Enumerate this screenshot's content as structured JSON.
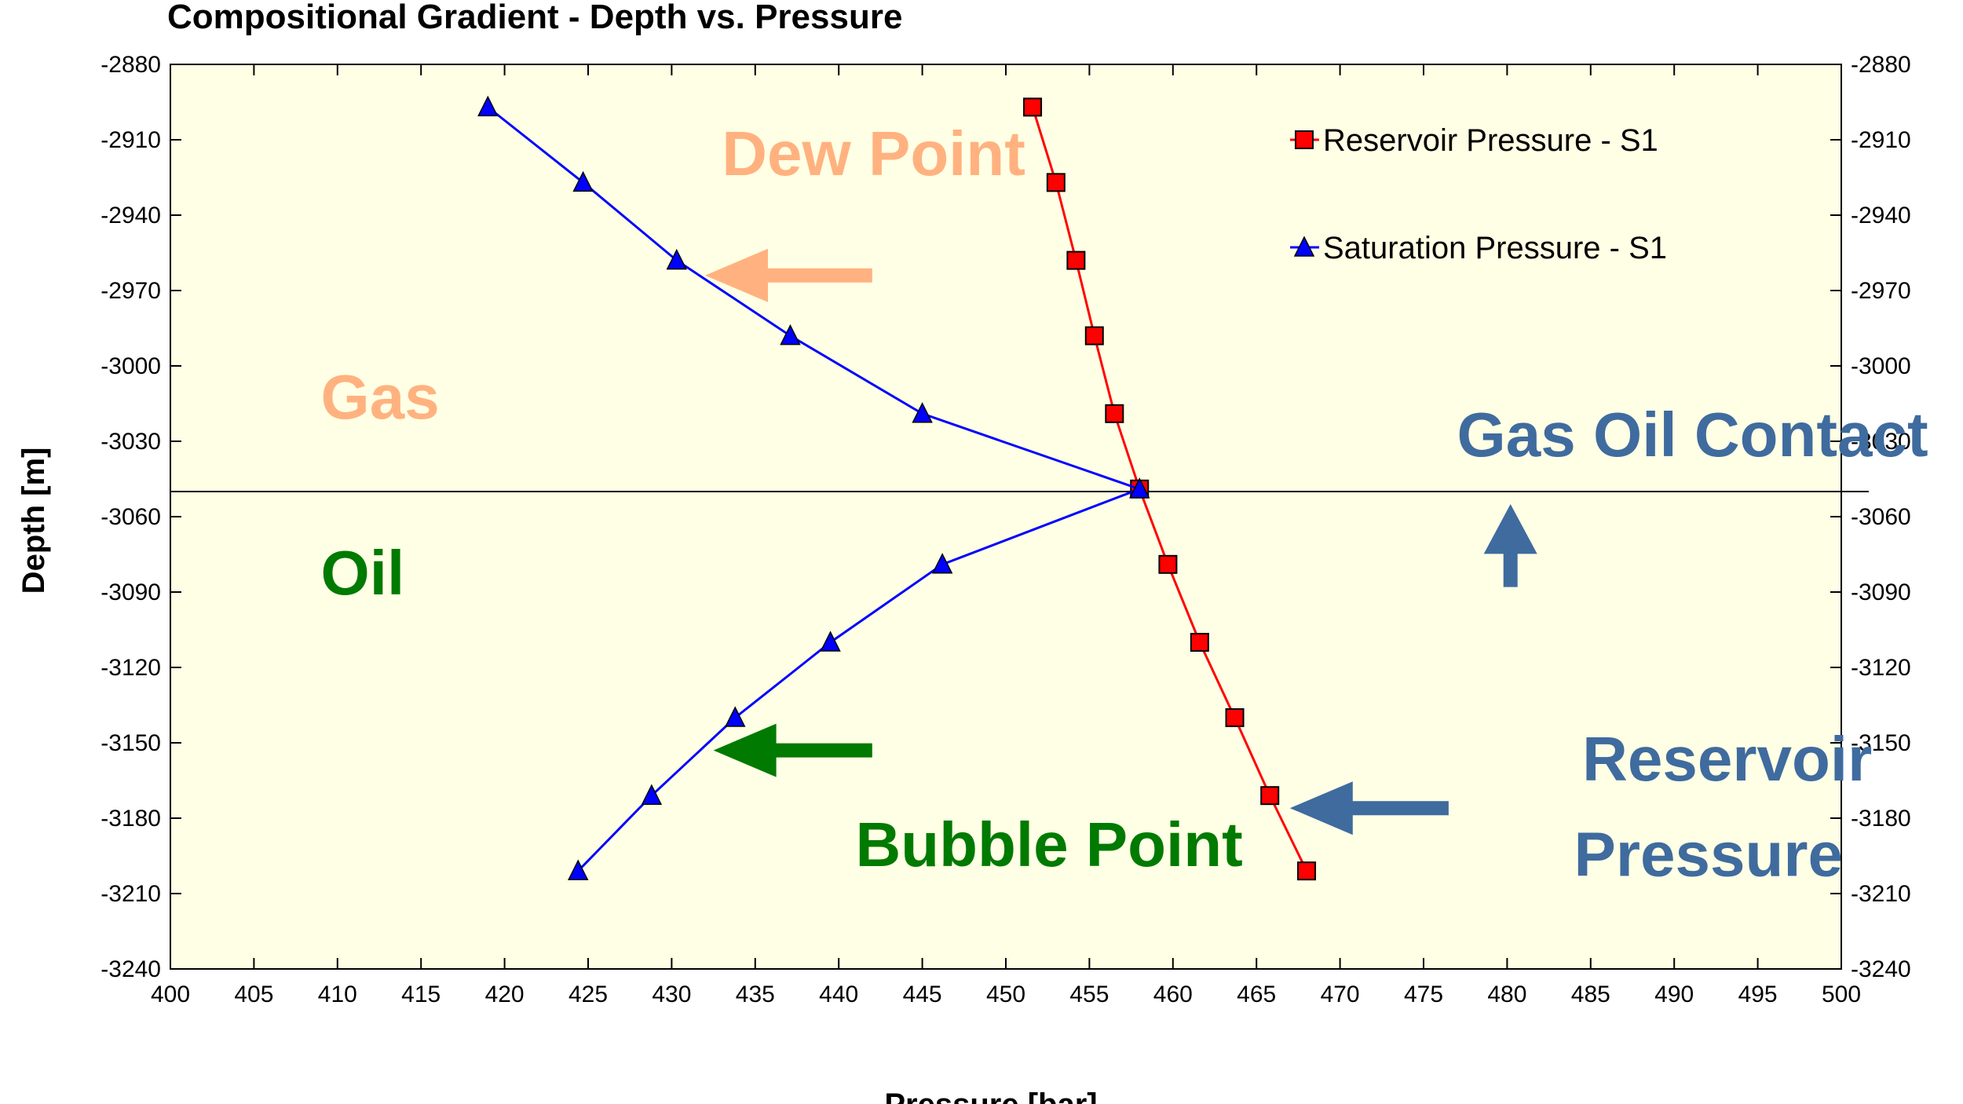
{
  "chart_data": {
    "type": "line",
    "title": "Compositional Gradient - Depth vs. Pressure",
    "xlabel": "Pressure [bar]",
    "ylabel": "Depth [m]",
    "xlim": [
      400,
      500
    ],
    "ylim": [
      -3240,
      -2880
    ],
    "x_ticks": [
      400,
      405,
      410,
      415,
      420,
      425,
      430,
      435,
      440,
      445,
      450,
      455,
      460,
      465,
      470,
      475,
      480,
      485,
      490,
      495,
      500
    ],
    "y_ticks": [
      -2880,
      -2910,
      -2940,
      -2970,
      -3000,
      -3030,
      -3060,
      -3090,
      -3120,
      -3150,
      -3180,
      -3210,
      -3240
    ],
    "y_axis_sides": "left and right",
    "grid": false,
    "plot_background": "#FFFFE5",
    "legend_position": "top-right",
    "series": [
      {
        "name": "Reservoir Pressure - S1",
        "color": "#FF0000",
        "marker": "square",
        "points": [
          {
            "x": 451.6,
            "y": -2897
          },
          {
            "x": 453.0,
            "y": -2927
          },
          {
            "x": 454.2,
            "y": -2958
          },
          {
            "x": 455.3,
            "y": -2988
          },
          {
            "x": 456.5,
            "y": -3019
          },
          {
            "x": 458.0,
            "y": -3049
          },
          {
            "x": 459.7,
            "y": -3079
          },
          {
            "x": 461.6,
            "y": -3110
          },
          {
            "x": 463.7,
            "y": -3140
          },
          {
            "x": 465.8,
            "y": -3171
          },
          {
            "x": 468.0,
            "y": -3201
          }
        ]
      },
      {
        "name": "Saturation Pressure - S1",
        "color": "#0000FF",
        "marker": "triangle",
        "points": [
          {
            "x": 419.0,
            "y": -2897
          },
          {
            "x": 424.7,
            "y": -2927
          },
          {
            "x": 430.3,
            "y": -2958
          },
          {
            "x": 437.1,
            "y": -2988
          },
          {
            "x": 445.0,
            "y": -3019
          },
          {
            "x": 458.0,
            "y": -3049
          },
          {
            "x": 446.2,
            "y": -3079
          },
          {
            "x": 439.5,
            "y": -3110
          },
          {
            "x": 433.8,
            "y": -3140
          },
          {
            "x": 428.8,
            "y": -3171
          },
          {
            "x": 424.4,
            "y": -3201
          }
        ]
      }
    ],
    "reference_line": {
      "orientation": "horizontal",
      "y": -3050,
      "color": "#000000"
    },
    "annotations": [
      {
        "id": "dew-point",
        "text": "Dew Point",
        "color": "#FFB27F",
        "text_x": 433.0,
        "text_y": -2924,
        "arrow_from": {
          "x": 442.0,
          "y": -2964
        },
        "arrow_to": {
          "x": 432.0,
          "y": -2964
        }
      },
      {
        "id": "gas",
        "text": "Gas",
        "color": "#FFB27F",
        "text_x": 409.0,
        "text_y": -3021
      },
      {
        "id": "gas-oil-contact",
        "text": "Gas Oil Contact",
        "color": "#3F6B9E",
        "text_x": 477.0,
        "text_y": -3036,
        "arrow_from": {
          "x": 480.2,
          "y": -3088
        },
        "arrow_to": {
          "x": 480.2,
          "y": -3055
        }
      },
      {
        "id": "oil",
        "text": "Oil",
        "color": "#007A00",
        "text_x": 409.0,
        "text_y": -3091
      },
      {
        "id": "bubble-point",
        "text": "Bubble Point",
        "color": "#007A00",
        "text_x": 441.0,
        "text_y": -3199,
        "arrow_from": {
          "x": 442.0,
          "y": -3153
        },
        "arrow_to": {
          "x": 432.5,
          "y": -3153
        }
      },
      {
        "id": "reservoir-pressure-line1",
        "text": "Reservoir",
        "color": "#3F6B9E",
        "text_x": 484.5,
        "text_y": -3165
      },
      {
        "id": "reservoir-pressure-line2",
        "text": "Pressure",
        "color": "#3F6B9E",
        "text_x": 484.0,
        "text_y": -3203,
        "arrow_from": {
          "x": 476.5,
          "y": -3176
        },
        "arrow_to": {
          "x": 467.0,
          "y": -3176
        }
      }
    ]
  }
}
